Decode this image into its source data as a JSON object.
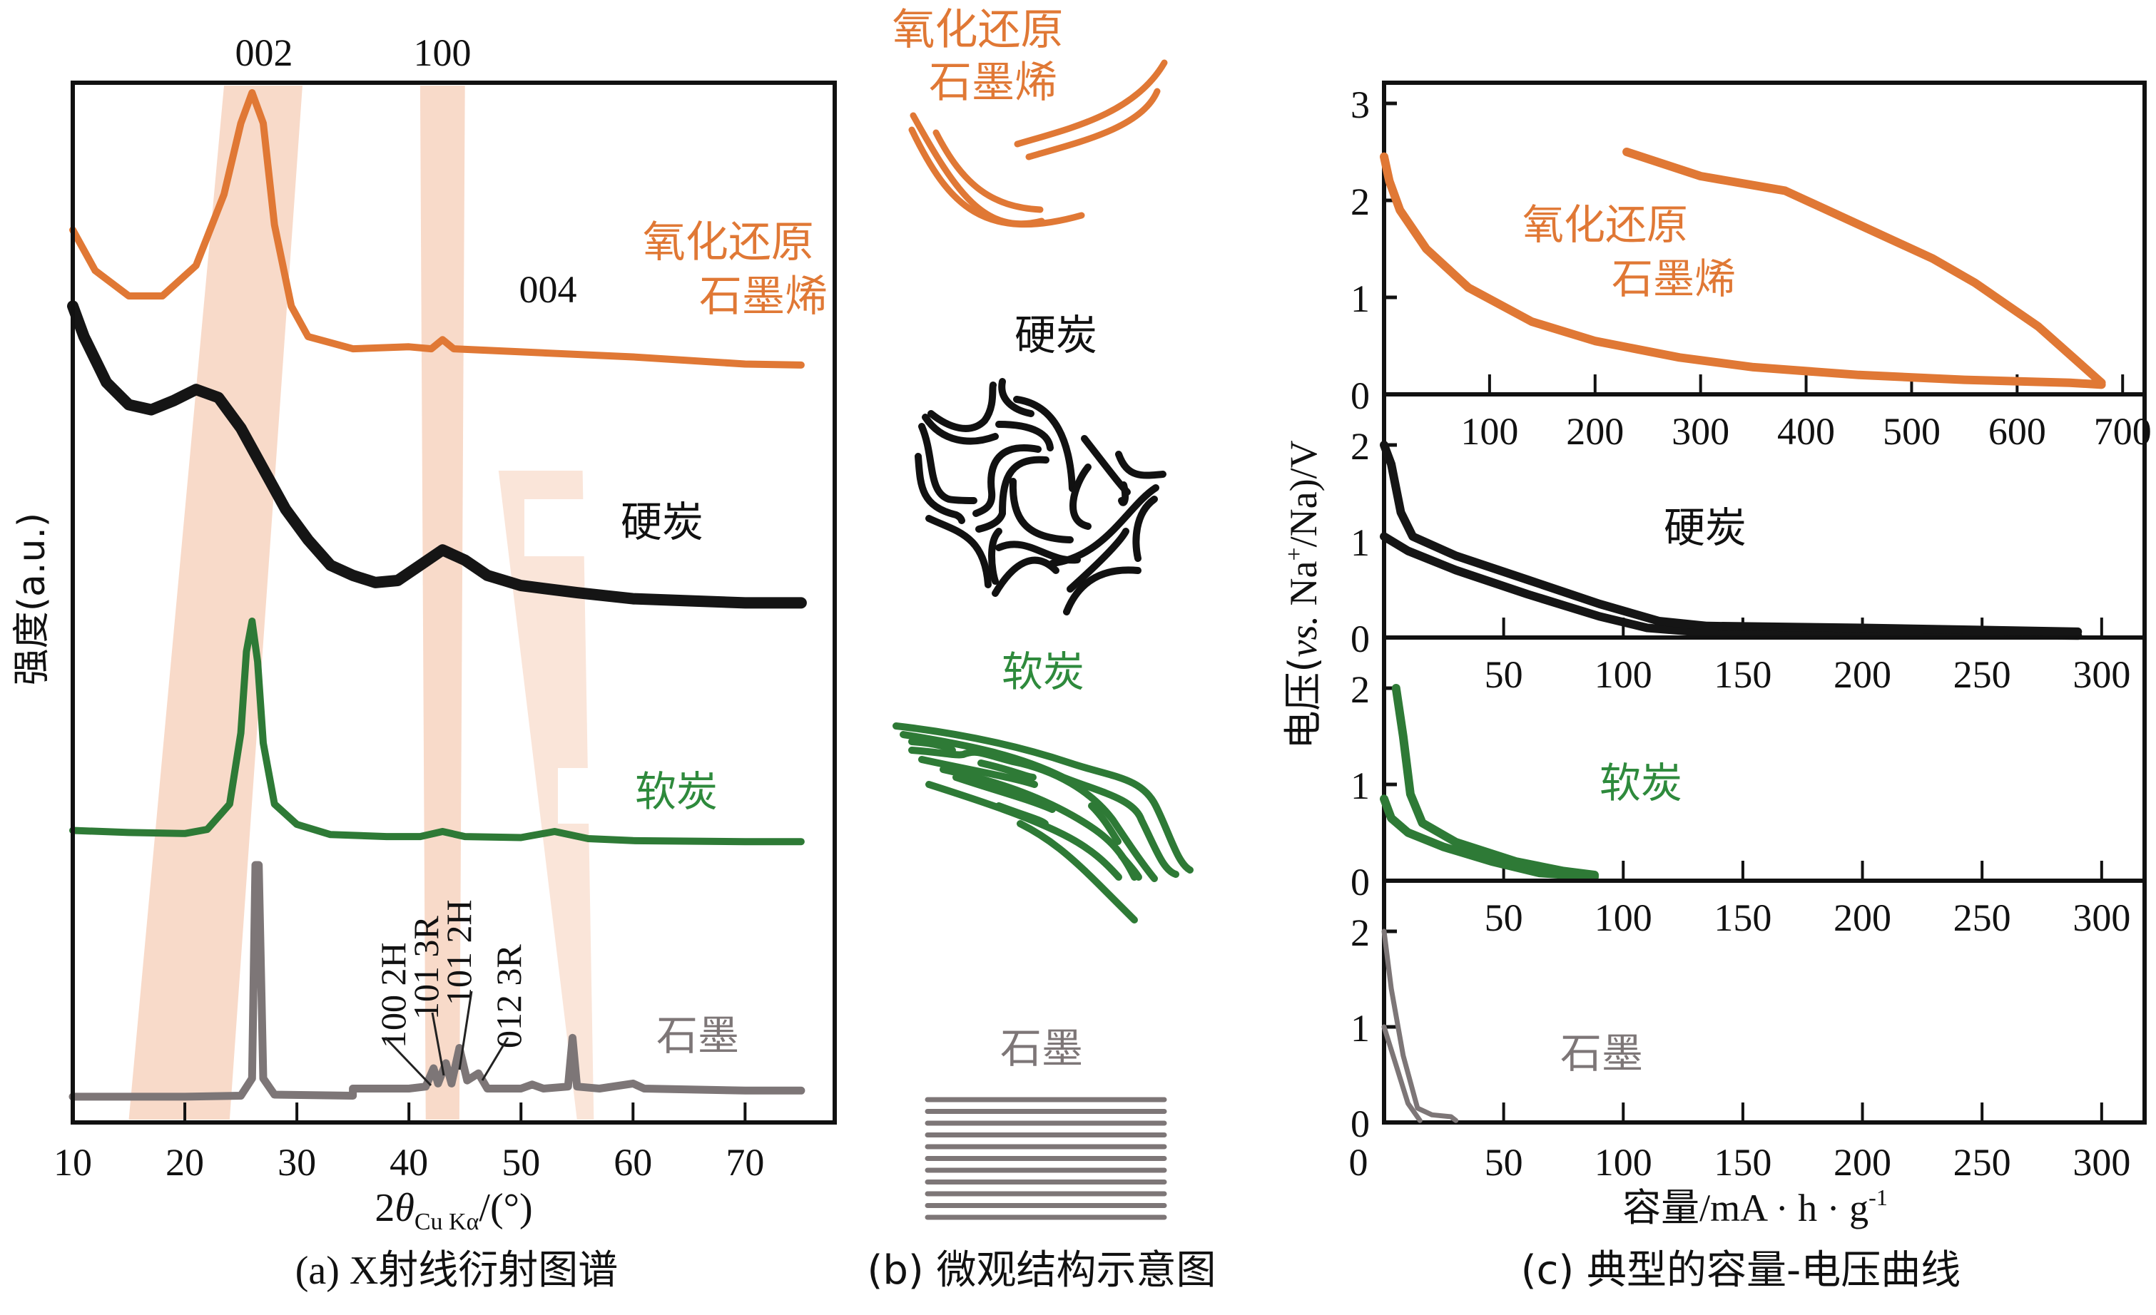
{
  "colors": {
    "orange": "#e07835",
    "black": "#151515",
    "green": "#2e7a36",
    "gray": "#7d7677",
    "shade": "#f7d3bf",
    "axis": "#111111"
  },
  "chart_data": [
    {
      "id": "a",
      "type": "line",
      "title": "(a) X射线衍射图谱",
      "xlabel": "2θCu Kα/(°)",
      "xlabel_parts": {
        "main": "2",
        "theta": "θ",
        "sub": "Cu Kα",
        "unit": "/(°)"
      },
      "ylabel": "强度(a.u.)",
      "xlim": [
        10,
        78
      ],
      "xticks": [
        10,
        20,
        30,
        40,
        50,
        60,
        70
      ],
      "peak_labels": [
        {
          "text": "002",
          "x": 26
        },
        {
          "text": "100",
          "x": 43
        },
        {
          "text": "004",
          "x": 54
        }
      ],
      "graphite_peak_labels": [
        "100 2H",
        "101 3R",
        "101 2H",
        "012 3R"
      ],
      "shaded_bands": [
        {
          "name": "002",
          "x_top": [
            23.5,
            30.5
          ],
          "x_bottom": [
            15,
            24
          ]
        },
        {
          "name": "100",
          "x_top": [
            41,
            45
          ],
          "x_bottom": [
            41.5,
            44.5
          ]
        },
        {
          "name": "004",
          "x_top": [
            48,
            55.5
          ],
          "x_bottom": [
            55,
            56.5
          ]
        }
      ],
      "series": [
        {
          "name": "氧化还原石墨烯",
          "color": "orange",
          "label": "氧化还原\n石墨烯",
          "points": [
            [
              10,
              0.865
            ],
            [
              12,
              0.825
            ],
            [
              15,
              0.8
            ],
            [
              18,
              0.8
            ],
            [
              21,
              0.83
            ],
            [
              23.5,
              0.9
            ],
            [
              25,
              0.97
            ],
            [
              26,
              1.0
            ],
            [
              27,
              0.97
            ],
            [
              28,
              0.87
            ],
            [
              29.5,
              0.79
            ],
            [
              31,
              0.76
            ],
            [
              35,
              0.748
            ],
            [
              40,
              0.75
            ],
            [
              42,
              0.748
            ],
            [
              43,
              0.757
            ],
            [
              44,
              0.748
            ],
            [
              50,
              0.745
            ],
            [
              60,
              0.74
            ],
            [
              70,
              0.733
            ],
            [
              75,
              0.732
            ]
          ]
        },
        {
          "name": "硬炭",
          "color": "black",
          "label": "硬炭",
          "points": [
            [
              10,
              0.79
            ],
            [
              11,
              0.76
            ],
            [
              13,
              0.715
            ],
            [
              15,
              0.693
            ],
            [
              17,
              0.688
            ],
            [
              19,
              0.697
            ],
            [
              21,
              0.708
            ],
            [
              23,
              0.7
            ],
            [
              25,
              0.67
            ],
            [
              27,
              0.63
            ],
            [
              29,
              0.59
            ],
            [
              31,
              0.56
            ],
            [
              33,
              0.535
            ],
            [
              35,
              0.525
            ],
            [
              37,
              0.518
            ],
            [
              39,
              0.52
            ],
            [
              41,
              0.535
            ],
            [
              43,
              0.55
            ],
            [
              45,
              0.54
            ],
            [
              47,
              0.525
            ],
            [
              50,
              0.515
            ],
            [
              55,
              0.508
            ],
            [
              60,
              0.502
            ],
            [
              65,
              0.5
            ],
            [
              70,
              0.498
            ],
            [
              75,
              0.498
            ]
          ]
        },
        {
          "name": "软炭",
          "color": "green",
          "label": "软炭",
          "points": [
            [
              10,
              0.274
            ],
            [
              15,
              0.272
            ],
            [
              20,
              0.271
            ],
            [
              22,
              0.275
            ],
            [
              24,
              0.3
            ],
            [
              25,
              0.37
            ],
            [
              25.5,
              0.45
            ],
            [
              26,
              0.48
            ],
            [
              26.5,
              0.44
            ],
            [
              27,
              0.36
            ],
            [
              28,
              0.3
            ],
            [
              30,
              0.28
            ],
            [
              33,
              0.27
            ],
            [
              38,
              0.268
            ],
            [
              41,
              0.268
            ],
            [
              43,
              0.273
            ],
            [
              45,
              0.268
            ],
            [
              50,
              0.267
            ],
            [
              53,
              0.273
            ],
            [
              56,
              0.266
            ],
            [
              60,
              0.264
            ],
            [
              70,
              0.263
            ],
            [
              75,
              0.263
            ]
          ]
        },
        {
          "name": "石墨",
          "color": "gray",
          "label": "石墨",
          "points": [
            [
              10,
              0.012
            ],
            [
              20,
              0.012
            ],
            [
              25,
              0.013
            ],
            [
              26,
              0.03
            ],
            [
              26.3,
              0.24
            ],
            [
              26.6,
              0.24
            ],
            [
              27,
              0.03
            ],
            [
              28,
              0.014
            ],
            [
              35,
              0.013
            ],
            [
              35,
              0.02
            ],
            [
              40,
              0.02
            ],
            [
              41.5,
              0.022
            ],
            [
              42.2,
              0.04
            ],
            [
              42.6,
              0.025
            ],
            [
              43.3,
              0.045
            ],
            [
              43.8,
              0.025
            ],
            [
              44.5,
              0.06
            ],
            [
              45.2,
              0.028
            ],
            [
              46.2,
              0.035
            ],
            [
              47,
              0.02
            ],
            [
              50,
              0.02
            ],
            [
              51,
              0.024
            ],
            [
              52,
              0.02
            ],
            [
              54.2,
              0.022
            ],
            [
              54.6,
              0.07
            ],
            [
              55,
              0.022
            ],
            [
              57,
              0.02
            ],
            [
              60,
              0.025
            ],
            [
              61,
              0.02
            ],
            [
              70,
              0.018
            ],
            [
              75,
              0.018
            ]
          ]
        }
      ]
    },
    {
      "id": "c",
      "type": "line",
      "title": "(c) 典型的容量-电压曲线",
      "xlabel": "容量/mA · h · g",
      "xlabel_sup": "-1",
      "ylabel": "电压(vs. Na+/Na)/V",
      "ylabel_parts": {
        "pre": "电压(",
        "vs": "vs.",
        "mid": " Na",
        "sup": "+",
        "post": "/Na)/V"
      },
      "panels": [
        {
          "name": "氧化还原石墨烯",
          "color": "orange",
          "xlim": [
            0,
            710
          ],
          "ylim": [
            0,
            3.2
          ],
          "xticks": [
            100,
            200,
            300,
            400,
            500,
            600,
            700
          ],
          "yticks": [
            0,
            1,
            2,
            3
          ],
          "discharge": [
            [
              0,
              2.45
            ],
            [
              5,
              2.2
            ],
            [
              15,
              1.9
            ],
            [
              40,
              1.5
            ],
            [
              80,
              1.1
            ],
            [
              140,
              0.75
            ],
            [
              200,
              0.55
            ],
            [
              280,
              0.38
            ],
            [
              350,
              0.28
            ],
            [
              450,
              0.2
            ],
            [
              550,
              0.15
            ],
            [
              650,
              0.12
            ],
            [
              680,
              0.1
            ]
          ],
          "charge": [
            [
              680,
              0.12
            ],
            [
              620,
              0.7
            ],
            [
              560,
              1.15
            ],
            [
              520,
              1.4
            ],
            [
              450,
              1.75
            ],
            [
              380,
              2.1
            ],
            [
              300,
              2.25
            ],
            [
              230,
              2.5
            ]
          ]
        },
        {
          "name": "硬炭",
          "color": "black",
          "xlim": [
            0,
            310
          ],
          "ylim": [
            0,
            2.2
          ],
          "xticks": [
            50,
            100,
            150,
            200,
            250,
            300
          ],
          "yticks": [
            0,
            1,
            2
          ],
          "discharge": [
            [
              0,
              1.05
            ],
            [
              10,
              0.9
            ],
            [
              30,
              0.7
            ],
            [
              60,
              0.45
            ],
            [
              90,
              0.22
            ],
            [
              110,
              0.1
            ],
            [
              130,
              0.06
            ],
            [
              200,
              0.04
            ],
            [
              290,
              0.02
            ]
          ],
          "charge": [
            [
              0,
              2.0
            ],
            [
              3,
              1.8
            ],
            [
              7,
              1.3
            ],
            [
              12,
              1.05
            ],
            [
              30,
              0.85
            ],
            [
              60,
              0.6
            ],
            [
              90,
              0.35
            ],
            [
              115,
              0.17
            ],
            [
              135,
              0.12
            ],
            [
              200,
              0.1
            ],
            [
              290,
              0.06
            ]
          ]
        },
        {
          "name": "软炭",
          "color": "green",
          "xlim": [
            0,
            310
          ],
          "ylim": [
            0,
            2.2
          ],
          "xticks": [
            50,
            100,
            150,
            200,
            250,
            300
          ],
          "yticks": [
            0,
            1,
            2
          ],
          "discharge": [
            [
              0,
              0.85
            ],
            [
              3,
              0.65
            ],
            [
              10,
              0.5
            ],
            [
              25,
              0.35
            ],
            [
              45,
              0.2
            ],
            [
              65,
              0.08
            ],
            [
              88,
              0.04
            ]
          ],
          "charge": [
            [
              5,
              2.0
            ],
            [
              8,
              1.5
            ],
            [
              11,
              0.9
            ],
            [
              16,
              0.6
            ],
            [
              30,
              0.4
            ],
            [
              55,
              0.2
            ],
            [
              75,
              0.1
            ],
            [
              88,
              0.06
            ]
          ]
        },
        {
          "name": "石墨",
          "color": "gray",
          "xlim": [
            0,
            310
          ],
          "ylim": [
            0,
            2.2
          ],
          "xticks": [
            50,
            100,
            150,
            200,
            250,
            300
          ],
          "yticks": [
            0,
            1,
            2
          ],
          "discharge": [
            [
              0,
              1.0
            ],
            [
              5,
              0.6
            ],
            [
              10,
              0.2
            ],
            [
              15,
              0.02
            ]
          ],
          "charge": [
            [
              0,
              2.0
            ],
            [
              3,
              1.4
            ],
            [
              8,
              0.7
            ],
            [
              14,
              0.15
            ],
            [
              20,
              0.08
            ],
            [
              28,
              0.06
            ],
            [
              30,
              0.02
            ]
          ]
        }
      ],
      "bottom_xticks": [
        0,
        50,
        100,
        150,
        200,
        250,
        300
      ]
    }
  ],
  "panel_b": {
    "title": "(b) 微观结构示意图",
    "labels": {
      "rgo": "氧化还原\n石墨烯",
      "hard": "硬炭",
      "soft": "软炭",
      "graphite": "石墨"
    },
    "graphite_layers": 11
  }
}
